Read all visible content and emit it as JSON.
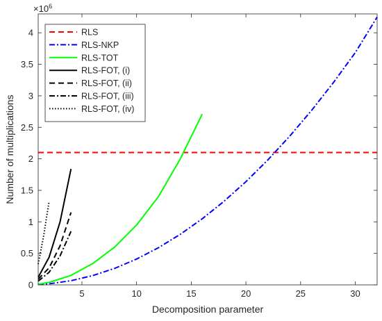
{
  "chart_data": {
    "type": "line",
    "title": "",
    "xlabel": "Decomposition parameter",
    "ylabel": "Number of multiplications",
    "y_exponent_label": "×10",
    "y_exponent_power": "6",
    "xlim": [
      1,
      32
    ],
    "ylim": [
      0,
      4.3
    ],
    "y_scale_factor": 1000000,
    "xticks": [
      5,
      10,
      15,
      20,
      25,
      30
    ],
    "yticks": [
      0,
      0.5,
      1,
      1.5,
      2,
      2.5,
      3,
      3.5,
      4
    ],
    "grid": false,
    "legend_position": "top-left",
    "series": [
      {
        "name": "RLS",
        "color": "#ff0000",
        "dash": "dashed",
        "x": [
          1,
          32
        ],
        "y": [
          2.1,
          2.1
        ]
      },
      {
        "name": "RLS-NKP",
        "color": "#0000ff",
        "dash": "dashdot",
        "x": [
          1,
          2,
          4,
          6,
          8,
          10,
          12,
          14,
          16,
          18,
          20,
          22,
          24,
          26,
          28,
          30,
          32
        ],
        "y": [
          0.005,
          0.017,
          0.066,
          0.148,
          0.262,
          0.41,
          0.59,
          0.803,
          1.048,
          1.327,
          1.638,
          1.982,
          2.359,
          2.768,
          3.21,
          3.685,
          4.25
        ]
      },
      {
        "name": "RLS-TOT",
        "color": "#00ff00",
        "dash": "solid",
        "x": [
          1,
          2,
          4,
          6,
          8,
          10,
          12,
          14,
          16
        ],
        "y": [
          0.01,
          0.04,
          0.15,
          0.34,
          0.6,
          0.95,
          1.4,
          2.0,
          2.71
        ]
      },
      {
        "name": "RLS-FOT, (i)",
        "color": "#000000",
        "dash": "solid",
        "x": [
          1,
          2,
          3,
          4
        ],
        "y": [
          0.12,
          0.44,
          1.0,
          1.84
        ]
      },
      {
        "name": "RLS-FOT, (ii)",
        "color": "#000000",
        "dash": "dashed",
        "x": [
          1,
          2,
          3,
          4
        ],
        "y": [
          0.09,
          0.27,
          0.62,
          1.15
        ]
      },
      {
        "name": "RLS-FOT, (iii)",
        "color": "#000000",
        "dash": "dashdot",
        "x": [
          1,
          2,
          3,
          4
        ],
        "y": [
          0.06,
          0.2,
          0.46,
          0.85
        ]
      },
      {
        "name": "RLS-FOT, (iv)",
        "color": "#000000",
        "dash": "dotted",
        "x": [
          1,
          1.5,
          2
        ],
        "y": [
          0.33,
          0.78,
          1.33
        ]
      }
    ]
  }
}
